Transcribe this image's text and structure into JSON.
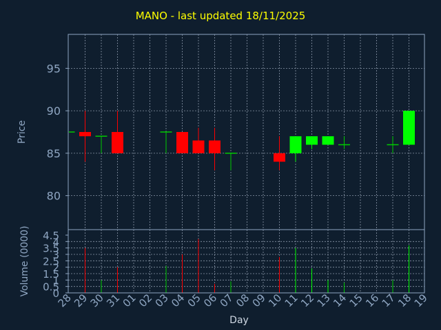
{
  "chart_data": {
    "type": "candlestick",
    "title": "MANO - last updated 18/11/2025",
    "ylabel": "Price",
    "volume_label": "Volume (0000)",
    "xlabel": "Day",
    "x_tick_labels": [
      "28",
      "29",
      "30",
      "31",
      "01",
      "02",
      "03",
      "04",
      "05",
      "06",
      "07",
      "08",
      "09",
      "10",
      "11",
      "12",
      "13",
      "14",
      "15",
      "16",
      "17",
      "18",
      "19"
    ],
    "price_ticks": [
      80,
      85,
      90,
      95
    ],
    "price_ylim": [
      76,
      99
    ],
    "volume_ticks": [
      "0",
      "0.5",
      "1",
      "1.5",
      "2",
      "2.5",
      "3",
      "3.5",
      "4",
      "4.5"
    ],
    "volume_ylim": [
      0,
      4.5
    ],
    "grid": true,
    "candles": [
      {
        "day": "28",
        "open": 87.5,
        "high": 87.5,
        "low": 87.5,
        "close": 87.5,
        "volume": 0
      },
      {
        "day": "29",
        "open": 87.5,
        "high": 90.0,
        "low": 84.0,
        "close": 87.0,
        "volume": 3.5
      },
      {
        "day": "30",
        "open": 87.0,
        "high": 87.0,
        "low": 85.0,
        "close": 87.0,
        "volume": 1.0
      },
      {
        "day": "31",
        "open": 87.5,
        "high": 90.0,
        "low": 85.0,
        "close": 85.0,
        "volume": 2.0
      },
      {
        "day": "03",
        "open": 87.5,
        "high": 87.5,
        "low": 85.0,
        "close": 87.5,
        "volume": 2.1
      },
      {
        "day": "04",
        "open": 87.5,
        "high": 87.5,
        "low": 85.0,
        "close": 85.0,
        "volume": 3.0
      },
      {
        "day": "05",
        "open": 86.5,
        "high": 88.0,
        "low": 85.0,
        "close": 85.0,
        "volume": 4.2
      },
      {
        "day": "06",
        "open": 86.5,
        "high": 88.0,
        "low": 83.0,
        "close": 85.0,
        "volume": 0.7
      },
      {
        "day": "07",
        "open": 85.0,
        "high": 85.0,
        "low": 83.0,
        "close": 85.0,
        "volume": 0.9
      },
      {
        "day": "10",
        "open": 85.0,
        "high": 87.0,
        "low": 83.0,
        "close": 84.0,
        "volume": 2.8
      },
      {
        "day": "11",
        "open": 85.0,
        "high": 87.0,
        "low": 84.0,
        "close": 87.0,
        "volume": 3.5
      },
      {
        "day": "12",
        "open": 86.0,
        "high": 87.0,
        "low": 85.5,
        "close": 87.0,
        "volume": 1.9
      },
      {
        "day": "13",
        "open": 86.0,
        "high": 87.0,
        "low": 86.0,
        "close": 87.0,
        "volume": 1.0
      },
      {
        "day": "14",
        "open": 86.0,
        "high": 87.0,
        "low": 85.5,
        "close": 86.0,
        "volume": 0.8
      },
      {
        "day": "17",
        "open": 86.0,
        "high": 87.0,
        "low": 85.0,
        "close": 86.0,
        "volume": 1.0
      },
      {
        "day": "18",
        "open": 86.0,
        "high": 90.0,
        "low": 86.0,
        "close": 90.0,
        "volume": 3.7
      }
    ],
    "colors": {
      "background": "#0f1e2e",
      "axis": "#8fa6c2",
      "grid": "#8a97a8",
      "up": "#00ff00",
      "down": "#ff0000",
      "flat": "#00cc00",
      "title": "#ffff00"
    }
  }
}
